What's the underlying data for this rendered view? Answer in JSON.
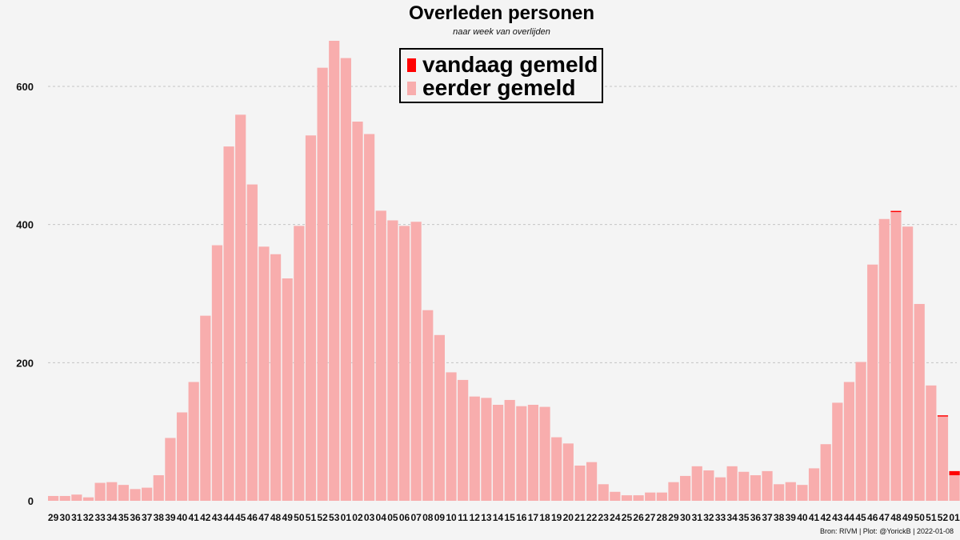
{
  "chart_data": {
    "type": "bar",
    "title": "Overleden personen",
    "subtitle": "naar week van overlijden",
    "caption": "Bron: RIVM | Plot: @YorickB |  2022-01-08",
    "xlabel": "",
    "ylabel": "",
    "ylim": [
      0,
      700
    ],
    "yticks": [
      0,
      200,
      400,
      600
    ],
    "grid": "horizontal-dashed",
    "legend_position": "top-center",
    "categories": [
      "29",
      "30",
      "31",
      "32",
      "33",
      "34",
      "35",
      "36",
      "37",
      "38",
      "39",
      "40",
      "41",
      "42",
      "43",
      "44",
      "45",
      "46",
      "47",
      "48",
      "49",
      "50",
      "51",
      "52",
      "53",
      "01",
      "02",
      "03",
      "04",
      "05",
      "06",
      "07",
      "08",
      "09",
      "10",
      "11",
      "12",
      "13",
      "14",
      "15",
      "16",
      "17",
      "18",
      "19",
      "20",
      "21",
      "22",
      "23",
      "24",
      "25",
      "26",
      "27",
      "28",
      "29",
      "30",
      "31",
      "32",
      "33",
      "34",
      "35",
      "36",
      "37",
      "38",
      "39",
      "40",
      "41",
      "42",
      "43",
      "44",
      "45",
      "46",
      "47",
      "48",
      "49",
      "50",
      "51",
      "52",
      "01"
    ],
    "series": [
      {
        "name": "eerder gemeld",
        "color": "#f8adad",
        "values": [
          7,
          7,
          9,
          5,
          26,
          27,
          23,
          17,
          19,
          37,
          91,
          128,
          172,
          268,
          370,
          513,
          559,
          458,
          368,
          357,
          322,
          398,
          529,
          627,
          666,
          641,
          549,
          531,
          420,
          406,
          398,
          404,
          276,
          240,
          186,
          175,
          151,
          149,
          139,
          146,
          137,
          139,
          136,
          92,
          83,
          51,
          56,
          24,
          13,
          8,
          8,
          12,
          12,
          27,
          36,
          50,
          44,
          34,
          50,
          42,
          37,
          43,
          24,
          27,
          23,
          47,
          82,
          142,
          172,
          201,
          342,
          408,
          418,
          397,
          285,
          167,
          122,
          37
        ]
      },
      {
        "name": "vandaag gemeld",
        "color": "#ff0000",
        "values": [
          0,
          0,
          0,
          0,
          0,
          0,
          0,
          0,
          0,
          0,
          0,
          0,
          0,
          0,
          0,
          0,
          0,
          0,
          0,
          0,
          0,
          0,
          0,
          0,
          0,
          0,
          0,
          0,
          0,
          0,
          0,
          0,
          0,
          0,
          0,
          0,
          0,
          0,
          0,
          0,
          0,
          0,
          0,
          0,
          0,
          0,
          0,
          0,
          0,
          0,
          0,
          0,
          0,
          0,
          0,
          0,
          0,
          0,
          0,
          0,
          0,
          0,
          0,
          0,
          0,
          0,
          0,
          0,
          0,
          0,
          0,
          0,
          1,
          0,
          0,
          0,
          1,
          6
        ]
      }
    ]
  }
}
